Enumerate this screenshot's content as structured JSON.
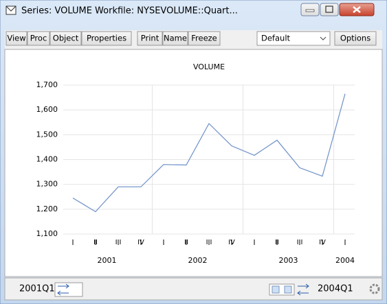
{
  "window": {
    "title": "Series: VOLUME   Workfile: NYSEVOLUME::Quart...",
    "toolbar": [
      "View",
      "Proc",
      "Object",
      "Properties",
      "Print",
      "Name",
      "Freeze"
    ],
    "dropdown": "Default",
    "options": "Options",
    "status_start": "2001Q1",
    "status_end": "2004Q1"
  },
  "chart_data": {
    "type": "line",
    "title": "VOLUME",
    "categories": [
      "I",
      "II",
      "III",
      "IV",
      "I",
      "II",
      "III",
      "IV",
      "I",
      "II",
      "III",
      "IV",
      "I"
    ],
    "years": [
      "2001",
      "2002",
      "2003",
      "2004"
    ],
    "values": [
      1245,
      1190,
      1290,
      1290,
      1380,
      1378,
      1545,
      1455,
      1417,
      1478,
      1367,
      1333,
      1665
    ],
    "color": "#7898cc",
    "ylim": [
      1100,
      1700
    ],
    "yticks": [
      {
        "value": 1100,
        "label": "1,100"
      },
      {
        "value": 1200,
        "label": "1,200"
      },
      {
        "value": 1300,
        "label": "1,300"
      },
      {
        "value": 1400,
        "label": "1,400"
      },
      {
        "value": 1500,
        "label": "1,500"
      },
      {
        "value": 1600,
        "label": "1,600"
      },
      {
        "value": 1700,
        "label": "1,700"
      }
    ],
    "grid": true
  }
}
